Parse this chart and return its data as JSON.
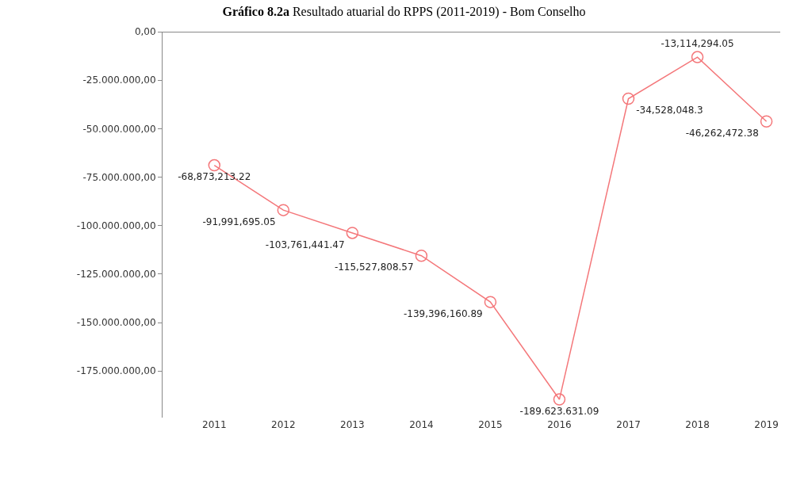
{
  "chart_data": {
    "type": "line",
    "title": "Gráfico 8.2a",
    "subtitle": "Resultado atuarial do RPPS (2011-2019) - Bom Conselho",
    "categories": [
      "2011",
      "2012",
      "2013",
      "2014",
      "2015",
      "2016",
      "2017",
      "2018",
      "2019"
    ],
    "series": [
      {
        "color": "#f4777a",
        "values": [
          -68873213.22,
          -91991695.05,
          -103761441.47,
          -115527808.57,
          -139396160.89,
          -189623631.09,
          -34528048.3,
          -13114294.05,
          -46262472.38
        ],
        "value_labels": [
          "-68,873,213.22",
          "-91,991,695.05",
          "-103,761,441.47",
          "-115,527,808.57",
          "-139,396,160.89",
          "-189.623.631.09",
          "-34,528,048.3",
          "-13,114,294.05",
          "-46,262,472.38"
        ]
      }
    ],
    "ylim": [
      -199000000,
      0
    ],
    "yticks": [
      {
        "value": 0,
        "label": "0,00"
      },
      {
        "value": -25000000,
        "label": "-25.000.000,00"
      },
      {
        "value": -50000000,
        "label": "-50.000.000,00"
      },
      {
        "value": -75000000,
        "label": "-75.000.000,00"
      },
      {
        "value": -100000000,
        "label": "-100.000.000,00"
      },
      {
        "value": -125000000,
        "label": "-125.000.000,00"
      },
      {
        "value": -150000000,
        "label": "-150.000.000,00"
      },
      {
        "value": -175000000,
        "label": "-175.000.000,00"
      }
    ],
    "marker": "circle",
    "line_style": "solid"
  }
}
